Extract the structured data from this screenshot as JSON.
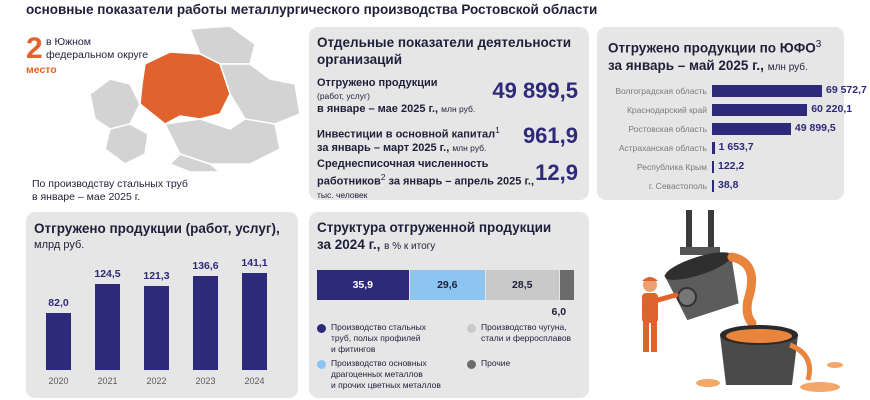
{
  "page_title": "основные показатели работы металлургического производства Ростовской области",
  "rank": {
    "number": "2",
    "text_line1": "в Южном",
    "text_line2": "федеральном округе",
    "place": "место",
    "note_line1": "По производству стальных труб",
    "note_line2": "в январе – мае 2025 г."
  },
  "indicators": {
    "title_line1": "Отдельные показатели деятельности",
    "title_line2": "организаций",
    "items": [
      {
        "l1": "Отгружено продукции",
        "l2": "(работ, услуг)",
        "l3": "в январе – мае 2025 г.,",
        "unit": "млн руб.",
        "value": "49 899,5"
      },
      {
        "l1": "Инвестиции в основной капитал",
        "sup": "1",
        "l2": "за январь – март 2025 г.,",
        "unit": "млн руб.",
        "value": "961,9"
      },
      {
        "l1": "Среднесписочная численность",
        "l2a": "работников",
        "sup": "2",
        "l2b": " за январь – апрель 2025 г.,",
        "unit": "тыс. человек",
        "value": "12,9"
      }
    ]
  },
  "ufo": {
    "title_line1": "Отгружено продукции по ЮФО",
    "title_sup": "3",
    "title_line2": "за январь – май 2025 г.,",
    "unit": "млн руб.",
    "color": "#2e2a7a",
    "rows": [
      {
        "name": "Волгоградская область",
        "value": 69572.7,
        "label": "69 572,7"
      },
      {
        "name": "Краснодарский край",
        "value": 60220.1,
        "label": "60 220,1"
      },
      {
        "name": "Ростовская область",
        "value": 49899.5,
        "label": "49 899,5"
      },
      {
        "name": "Астраханская область",
        "value": 1653.7,
        "label": "1 653,7"
      },
      {
        "name": "Республика Крым",
        "value": 122.2,
        "label": "122,2"
      },
      {
        "name": "г. Севастополь",
        "value": 38.8,
        "label": "38,8"
      }
    ]
  },
  "shipped": {
    "title_line1": "Отгружено продукции (работ, услуг),",
    "title_line2": "млрд руб.",
    "color": "#2e2a7a",
    "chart_data": {
      "type": "bar",
      "categories": [
        "2020",
        "2021",
        "2022",
        "2023",
        "2024"
      ],
      "values": [
        82.0,
        124.5,
        121.3,
        136.6,
        141.1
      ],
      "labels": [
        "82,0",
        "124,5",
        "121,3",
        "136,6",
        "141,1"
      ]
    }
  },
  "structure": {
    "title_line1": "Структура отгруженной продукции",
    "title_line2": "за 2024 г.,",
    "unit": "в % к итогу",
    "segments": [
      {
        "value": 35.9,
        "label": "35,9",
        "color": "#2e2a7a",
        "text_color": "#ffffff"
      },
      {
        "value": 29.6,
        "label": "29,6",
        "color": "#8cc4f2",
        "text_color": "#1f1f3a"
      },
      {
        "value": 28.5,
        "label": "28,5",
        "color": "#c9c9c9",
        "text_color": "#1f1f3a"
      },
      {
        "value": 6.0,
        "label": "6,0",
        "color": "#6b6b6b",
        "text_color": "#1f1f3a"
      }
    ],
    "legend": [
      {
        "l1": "Производство стальных",
        "l2": "труб, полых профилей",
        "l3": "и фитингов",
        "color": "#2e2a7a"
      },
      {
        "l1": "Производство основных",
        "l2": "драгоценных металлов",
        "l3": "и прочих цветных металлов",
        "color": "#8cc4f2"
      },
      {
        "l1": "Производство чугуна,",
        "l2": "стали и ферросплавов",
        "l3": "",
        "color": "#c9c9c9"
      },
      {
        "l1": "Прочие",
        "l2": "",
        "l3": "",
        "color": "#6b6b6b"
      }
    ]
  },
  "map": {
    "highlight": "#e0622c",
    "base": "#d3d3d3"
  }
}
